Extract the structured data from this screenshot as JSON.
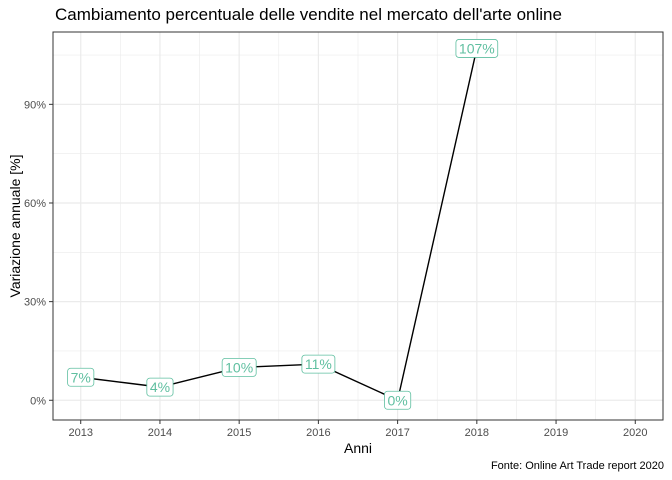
{
  "title": "Cambiamento percentuale delle vendite nel mercato dell'arte online",
  "caption": "Fonte: Online Art Trade report 2020",
  "colors": {
    "line": "#000000",
    "label": "#5fbfa0",
    "grid": "#ebebeb",
    "panel_border": "#333333"
  },
  "chart_data": {
    "type": "line",
    "title": "Cambiamento percentuale delle vendite nel mercato dell'arte online",
    "xlabel": "Anni",
    "ylabel": "Variazione annuale [%]",
    "x": [
      2013,
      2014,
      2015,
      2016,
      2017,
      2018
    ],
    "values": [
      7,
      4,
      10,
      11,
      0,
      107
    ],
    "data_labels": [
      "7%",
      "4%",
      "10%",
      "11%",
      "0%",
      "107%"
    ],
    "xticks": [
      "2013",
      "2014",
      "2015",
      "2016",
      "2017",
      "2018",
      "2019",
      "2020"
    ],
    "yticks": [
      0,
      30,
      60,
      90
    ],
    "ytick_labels": [
      "0%",
      "30%",
      "60%",
      "90%"
    ],
    "xlim": [
      2012.65,
      2020.35
    ],
    "ylim": [
      -6,
      112
    ],
    "grid": true,
    "legend": "none"
  }
}
